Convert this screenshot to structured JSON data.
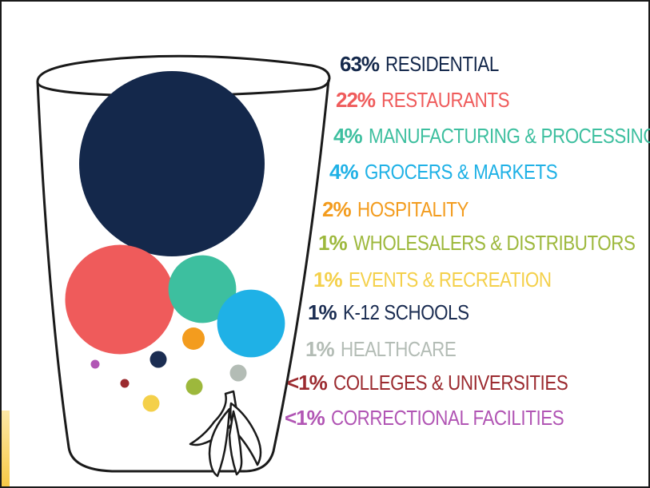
{
  "chart_data": {
    "type": "bubble",
    "title": "",
    "categories": [
      {
        "pct_label": "63%",
        "value": 63,
        "name": "RESIDENTIAL",
        "color": "#14284b"
      },
      {
        "pct_label": "22%",
        "value": 22,
        "name": "RESTAURANTS",
        "color": "#ef5b5b"
      },
      {
        "pct_label": "4%",
        "value": 4,
        "name": "MANUFACTURING & PROCESSING",
        "color": "#3dbf9f"
      },
      {
        "pct_label": "4%",
        "value": 4,
        "name": "GROCERS & MARKETS",
        "color": "#1fb1e6"
      },
      {
        "pct_label": "2%",
        "value": 2,
        "name": "HOSPITALITY",
        "color": "#f39c1e"
      },
      {
        "pct_label": "1%",
        "value": 1,
        "name": "WHOLESALERS & DISTRIBUTORS",
        "color": "#9db83c"
      },
      {
        "pct_label": "1%",
        "value": 1,
        "name": "EVENTS & RECREATION",
        "color": "#f4d04a"
      },
      {
        "pct_label": "1%",
        "value": 1,
        "name": "K-12 SCHOOLS",
        "color": "#1b2d52"
      },
      {
        "pct_label": "1%",
        "value": 1,
        "name": "HEALTHCARE",
        "color": "#b3bcb5"
      },
      {
        "pct_label": "<1%",
        "value": 0.5,
        "name": "COLLEGES & UNIVERSITIES",
        "color": "#9b2a2f"
      },
      {
        "pct_label": "<1%",
        "value": 0.5,
        "name": "CORRECTIONAL FACILITIES",
        "color": "#b155b4"
      }
    ],
    "legend_position": "right",
    "grid": false
  },
  "icons": {
    "container": "trash-cup-icon",
    "peel": "banana-peel-icon"
  },
  "colors": {
    "outline": "#1a1a1a",
    "background": "#ffffff",
    "accent": "#f7c948"
  }
}
